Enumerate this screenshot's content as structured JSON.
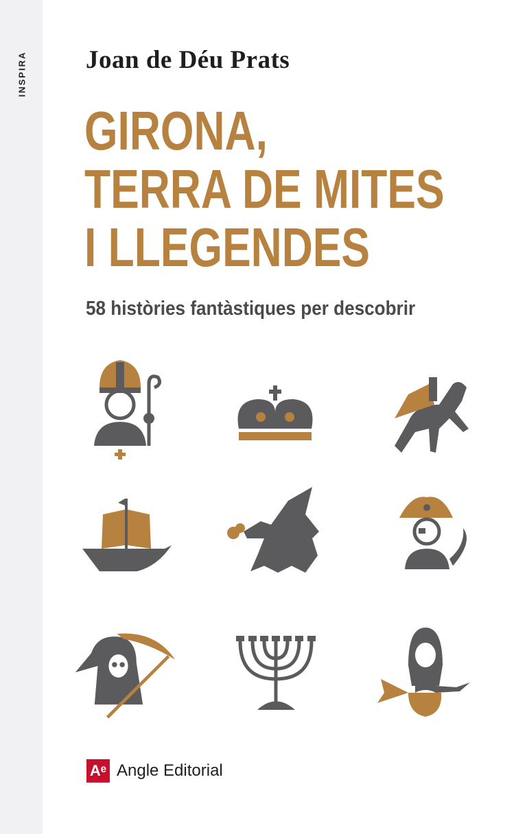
{
  "spine": {
    "series": "INSPIRA"
  },
  "cover": {
    "author": "Joan de Déu Prats",
    "title_lines": [
      "GIRONA,",
      "TERRA DE MITES",
      "I LLEGENDES"
    ],
    "subtitle": "58 històries fantàstiques per descobrir"
  },
  "icons": [
    "bishop-icon",
    "crown-icon",
    "headless-horseman-icon",
    "ship-icon",
    "dragon-icon",
    "pirate-icon",
    "grim-reaper-icon",
    "menorah-icon",
    "mermaid-icon"
  ],
  "publisher": {
    "logo_mark": "Aᵉ",
    "name": "Angle Editorial"
  },
  "colors": {
    "accent": "#b7813f",
    "icon_gray": "#5b5b5d",
    "spine": "#f1f1f3",
    "publisher_red": "#c8102e"
  }
}
